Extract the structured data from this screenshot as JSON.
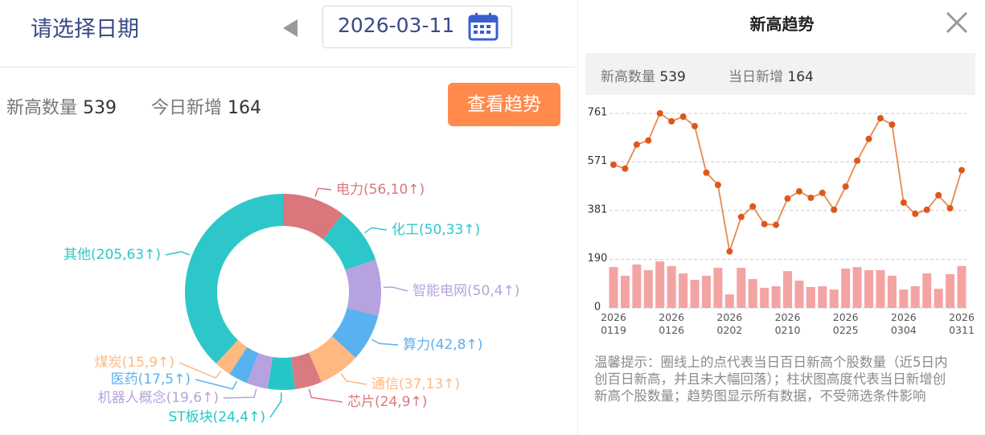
{
  "header": {
    "title": "请选择日期",
    "date": "2026-03-11"
  },
  "summary": {
    "count_label": "新高数量",
    "count": 539,
    "new_label": "今日新增",
    "new": 164
  },
  "button": "查看趋势",
  "panel": {
    "title": "新高趋势",
    "count_label": "新高数量",
    "count": 539,
    "new_label": "当日新增",
    "new": 164,
    "note": "温馨提示：圈线上的点代表当日百日新高个股数量（近5日内创百日新高，并且未大幅回落）；柱状图高度代表当日新增创新高个股数量；趋势图显示所有数据，不受筛选条件影响"
  },
  "chart_data": [
    {
      "type": "donut",
      "values": [
        56,
        50,
        50,
        42,
        37,
        24,
        24,
        19,
        17,
        15,
        205
      ],
      "value_labels": [
        "电力(56,10↑)",
        "化工(50,33↑)",
        "智能电网(50,4↑)",
        "算力(42,8↑)",
        "通信(37,13↑)",
        "芯片(24,9↑)",
        "ST板块(24,4↑)",
        "机器人概念(19,6↑)",
        "医药(17,5↑)",
        "煤炭(15,9↑)",
        "其他(205,63↑)"
      ],
      "colors": [
        "#d9777c",
        "#2ec7c9",
        "#b6a2de",
        "#5ab1ef",
        "#ffb980",
        "#d87a80",
        "#26c6c6",
        "#b6a2de",
        "#5ab1ef",
        "#ffb980",
        "#2ec7c9"
      ]
    },
    {
      "type": "bar-line",
      "categories": [
        "2026\n0119",
        null,
        null,
        null,
        null,
        "2026\n0126",
        null,
        null,
        null,
        null,
        "2026\n0202",
        null,
        null,
        null,
        null,
        "2026\n0210",
        null,
        null,
        null,
        null,
        "2026\n0225",
        null,
        null,
        null,
        null,
        "2026\n0304",
        null,
        null,
        null,
        null,
        "2026\n0311"
      ],
      "ylim": [
        0,
        761
      ],
      "yticks": [
        0,
        190,
        381,
        571,
        761
      ],
      "grid": true,
      "series": [
        {
          "type": "bar",
          "color": "#f4a3a3",
          "values": [
            160,
            126,
            170,
            148,
            182,
            164,
            135,
            110,
            126,
            157,
            53,
            157,
            113,
            79,
            85,
            144,
            107,
            82,
            85,
            72,
            154,
            160,
            148,
            148,
            126,
            72,
            85,
            135,
            75,
            132,
            164
          ]
        },
        {
          "type": "line",
          "color": "#e8894f",
          "point_color": "#e0561a",
          "values": [
            560,
            545,
            639,
            655,
            761,
            730,
            748,
            711,
            529,
            481,
            221,
            356,
            397,
            328,
            325,
            428,
            456,
            431,
            450,
            384,
            475,
            576,
            661,
            742,
            717,
            412,
            368,
            384,
            441,
            390,
            539
          ]
        }
      ]
    }
  ]
}
